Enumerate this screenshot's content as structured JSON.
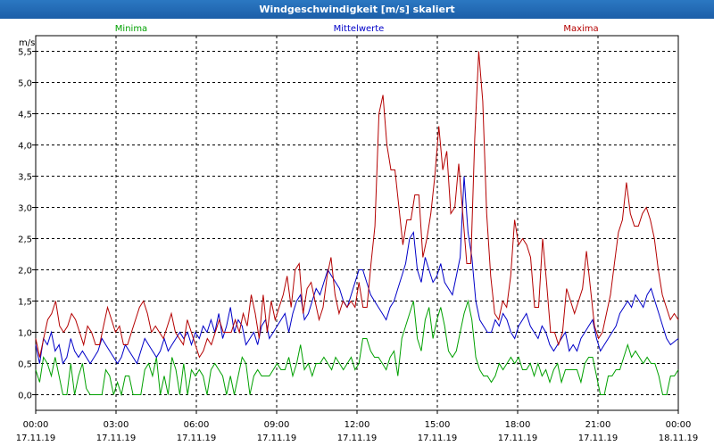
{
  "window": {
    "title": "Windgeschwindigkeit [m/s] skaliert"
  },
  "chart_data": {
    "type": "line",
    "title": "Windgeschwindigkeit [m/s] skaliert",
    "ylabel": "m/s",
    "xlabel": "",
    "ylim": [
      -0.25,
      5.75
    ],
    "xlim": [
      0,
      24
    ],
    "grid": true,
    "legend_placement": "top",
    "y_ticks": [
      {
        "value": 0.0,
        "label": "0,0"
      },
      {
        "value": 0.5,
        "label": "0,5"
      },
      {
        "value": 1.0,
        "label": "1,0"
      },
      {
        "value": 1.5,
        "label": "1,5"
      },
      {
        "value": 2.0,
        "label": "2,0"
      },
      {
        "value": 2.5,
        "label": "2,5"
      },
      {
        "value": 3.0,
        "label": "3,0"
      },
      {
        "value": 3.5,
        "label": "3,5"
      },
      {
        "value": 4.0,
        "label": "4,0"
      },
      {
        "value": 4.5,
        "label": "4,5"
      },
      {
        "value": 5.0,
        "label": "5,0"
      },
      {
        "value": 5.5,
        "label": "5,5"
      }
    ],
    "x_ticks": [
      {
        "value": 0,
        "time": "00:00",
        "date": "17.11.19"
      },
      {
        "value": 3,
        "time": "03:00",
        "date": "17.11.19"
      },
      {
        "value": 6,
        "time": "06:00",
        "date": "17.11.19"
      },
      {
        "value": 9,
        "time": "09:00",
        "date": "17.11.19"
      },
      {
        "value": 12,
        "time": "12:00",
        "date": "17.11.19"
      },
      {
        "value": 15,
        "time": "15:00",
        "date": "17.11.19"
      },
      {
        "value": 18,
        "time": "18:00",
        "date": "17.11.19"
      },
      {
        "value": 21,
        "time": "21:00",
        "date": "17.11.19"
      },
      {
        "value": 24,
        "time": "00:00",
        "date": "18.11.19"
      }
    ],
    "series": [
      {
        "name": "Minima",
        "color": "#00a000",
        "values": [
          0.4,
          0.2,
          0.6,
          0.5,
          0.3,
          0.6,
          0.3,
          0.0,
          0.0,
          0.5,
          0.0,
          0.3,
          0.5,
          0.1,
          0.0,
          0.0,
          0.0,
          0.0,
          0.4,
          0.3,
          0.0,
          0.2,
          0.0,
          0.3,
          0.3,
          0.0,
          0.0,
          0.0,
          0.4,
          0.5,
          0.3,
          0.6,
          0.0,
          0.3,
          0.0,
          0.6,
          0.4,
          0.0,
          0.5,
          0.0,
          0.4,
          0.3,
          0.4,
          0.3,
          0.0,
          0.4,
          0.5,
          0.4,
          0.3,
          0.0,
          0.3,
          0.0,
          0.3,
          0.6,
          0.5,
          0.0,
          0.3,
          0.4,
          0.3,
          0.3,
          0.3,
          0.4,
          0.5,
          0.4,
          0.4,
          0.6,
          0.3,
          0.5,
          0.8,
          0.4,
          0.5,
          0.3,
          0.5,
          0.5,
          0.6,
          0.5,
          0.4,
          0.6,
          0.5,
          0.4,
          0.5,
          0.6,
          0.4,
          0.5,
          0.9,
          0.9,
          0.7,
          0.6,
          0.6,
          0.5,
          0.4,
          0.6,
          0.7,
          0.3,
          0.9,
          1.1,
          1.3,
          1.5,
          0.9,
          0.7,
          1.2,
          1.4,
          0.9,
          1.2,
          1.4,
          1.1,
          0.7,
          0.6,
          0.7,
          1.0,
          1.3,
          1.5,
          1.2,
          0.6,
          0.4,
          0.3,
          0.3,
          0.2,
          0.3,
          0.5,
          0.4,
          0.5,
          0.6,
          0.5,
          0.6,
          0.4,
          0.4,
          0.5,
          0.3,
          0.5,
          0.3,
          0.4,
          0.2,
          0.4,
          0.5,
          0.2,
          0.4,
          0.4,
          0.4,
          0.4,
          0.2,
          0.5,
          0.6,
          0.6,
          0.3,
          0.0,
          0.0,
          0.3,
          0.3,
          0.4,
          0.4,
          0.6,
          0.8,
          0.6,
          0.7,
          0.6,
          0.5,
          0.6,
          0.5,
          0.5,
          0.3,
          0.0,
          0.0,
          0.3,
          0.3,
          0.4
        ],
        "values_note": ""
      },
      {
        "name": "Mittelwerte",
        "color": "#0000c8",
        "values": [
          0.8,
          0.5,
          0.9,
          0.8,
          1.0,
          0.7,
          0.8,
          0.5,
          0.6,
          0.9,
          0.7,
          0.6,
          0.7,
          0.6,
          0.5,
          0.6,
          0.7,
          0.9,
          0.8,
          0.7,
          0.6,
          0.5,
          0.6,
          0.8,
          0.7,
          0.6,
          0.5,
          0.7,
          0.9,
          0.8,
          0.7,
          0.6,
          0.7,
          0.9,
          0.7,
          0.8,
          0.9,
          1.0,
          0.9,
          1.0,
          0.8,
          1.0,
          0.9,
          1.1,
          1.0,
          1.2,
          1.0,
          1.3,
          0.9,
          1.1,
          1.4,
          1.0,
          1.2,
          1.1,
          0.8,
          0.9,
          1.0,
          0.8,
          1.1,
          1.2,
          0.9,
          1.0,
          1.1,
          1.2,
          1.3,
          1.0,
          1.3,
          1.5,
          1.6,
          1.2,
          1.3,
          1.5,
          1.7,
          1.6,
          1.8,
          2.0,
          1.9,
          1.8,
          1.7,
          1.5,
          1.4,
          1.6,
          1.8,
          2.0,
          2.0,
          1.8,
          1.6,
          1.5,
          1.4,
          1.3,
          1.2,
          1.4,
          1.5,
          1.7,
          1.9,
          2.1,
          2.5,
          2.6,
          2.0,
          1.8,
          2.2,
          2.0,
          1.8,
          1.9,
          2.1,
          1.8,
          1.7,
          1.6,
          1.9,
          2.2,
          3.5,
          2.6,
          2.2,
          1.5,
          1.2,
          1.1,
          1.0,
          1.0,
          1.2,
          1.1,
          1.3,
          1.2,
          1.0,
          0.9,
          1.1,
          1.2,
          1.3,
          1.1,
          1.0,
          0.9,
          1.1,
          1.0,
          0.8,
          0.7,
          0.8,
          0.9,
          1.0,
          0.7,
          0.8,
          0.7,
          0.9,
          1.0,
          1.1,
          1.2,
          0.9,
          0.7,
          0.8,
          0.9,
          1.0,
          1.1,
          1.3,
          1.4,
          1.5,
          1.4,
          1.6,
          1.5,
          1.4,
          1.6,
          1.7,
          1.5,
          1.3,
          1.1,
          0.9,
          0.8,
          0.85,
          0.9
        ],
        "values_note": ""
      },
      {
        "name": "Maxima",
        "color": "#b40000",
        "values": [
          0.9,
          0.6,
          0.9,
          1.2,
          1.3,
          1.5,
          1.1,
          1.0,
          1.1,
          1.3,
          1.2,
          1.0,
          0.8,
          1.1,
          1.0,
          0.8,
          0.8,
          1.1,
          1.4,
          1.2,
          1.0,
          1.1,
          0.8,
          0.8,
          1.0,
          1.2,
          1.4,
          1.5,
          1.3,
          1.0,
          1.1,
          1.0,
          0.9,
          1.1,
          1.3,
          1.0,
          0.9,
          0.8,
          1.2,
          1.0,
          0.8,
          0.6,
          0.7,
          0.9,
          0.8,
          1.0,
          1.2,
          1.0,
          1.0,
          1.0,
          1.2,
          1.0,
          1.3,
          1.1,
          1.6,
          1.3,
          0.9,
          1.6,
          1.0,
          1.5,
          1.2,
          1.4,
          1.6,
          1.9,
          1.4,
          2.0,
          2.1,
          1.3,
          1.7,
          1.8,
          1.5,
          1.2,
          1.4,
          1.9,
          2.2,
          1.6,
          1.3,
          1.5,
          1.4,
          1.5,
          1.4,
          1.8,
          1.4,
          1.4,
          2.1,
          2.7,
          4.5,
          4.8,
          4.0,
          3.6,
          3.6,
          3.0,
          2.4,
          2.8,
          2.8,
          3.2,
          3.2,
          2.2,
          2.5,
          2.9,
          3.5,
          4.3,
          3.6,
          3.9,
          2.9,
          3.0,
          3.7,
          2.9,
          2.1,
          2.1,
          4.1,
          5.5,
          4.7,
          2.9,
          1.9,
          1.3,
          1.2,
          1.5,
          1.4,
          1.9,
          2.8,
          2.4,
          2.5,
          2.4,
          2.2,
          1.4,
          1.4,
          2.5,
          1.8,
          1.0,
          1.0,
          0.8,
          1.0,
          1.7,
          1.5,
          1.3,
          1.5,
          1.7,
          2.3,
          1.7,
          1.1,
          0.9,
          1.0,
          1.3,
          1.6,
          2.1,
          2.6,
          2.8,
          3.4,
          2.9,
          2.7,
          2.7,
          2.9,
          3.0,
          2.8,
          2.5,
          2.0,
          1.6,
          1.4,
          1.2,
          1.3,
          1.2
        ],
        "values_note": ""
      }
    ]
  }
}
